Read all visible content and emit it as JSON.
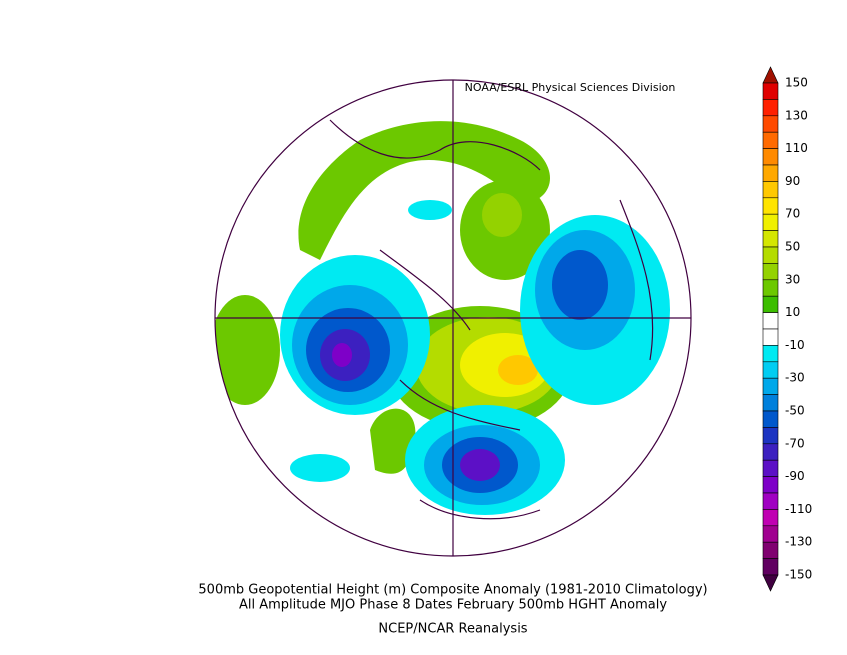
{
  "header": {
    "credit": "NOAA/ESRL Physical Sciences Division"
  },
  "captions": [
    "500mb Geopotential Height (m) Composite Anomaly (1981-2010 Climatology)",
    "All Amplitude MJO Phase 8 Dates February 500mb HGHT Anomaly",
    "NCEP/NCAR Reanalysis"
  ],
  "colorbar": {
    "labels": [
      150,
      130,
      110,
      90,
      70,
      50,
      30,
      10,
      -10,
      -30,
      -50,
      -70,
      -90,
      -110,
      -130,
      -150
    ],
    "colors": [
      "#e00000",
      "#ff2000",
      "#ff4a00",
      "#ff6a00",
      "#ff8a00",
      "#ffa800",
      "#ffc800",
      "#ffe400",
      "#f0f000",
      "#d4e600",
      "#b4dc00",
      "#94d200",
      "#6cc800",
      "#3cbe00",
      "#ffffff",
      "#ffffff",
      "#00eaf2",
      "#00cdf2",
      "#00a8ea",
      "#0080dc",
      "#0058cc",
      "#1c34c2",
      "#3c20c0",
      "#5c10c6",
      "#7e00c8",
      "#a000c2",
      "#c000b2",
      "#a00090",
      "#800070",
      "#600060"
    ],
    "top_color": "#a01000",
    "bottom_color": "#400040"
  }
}
